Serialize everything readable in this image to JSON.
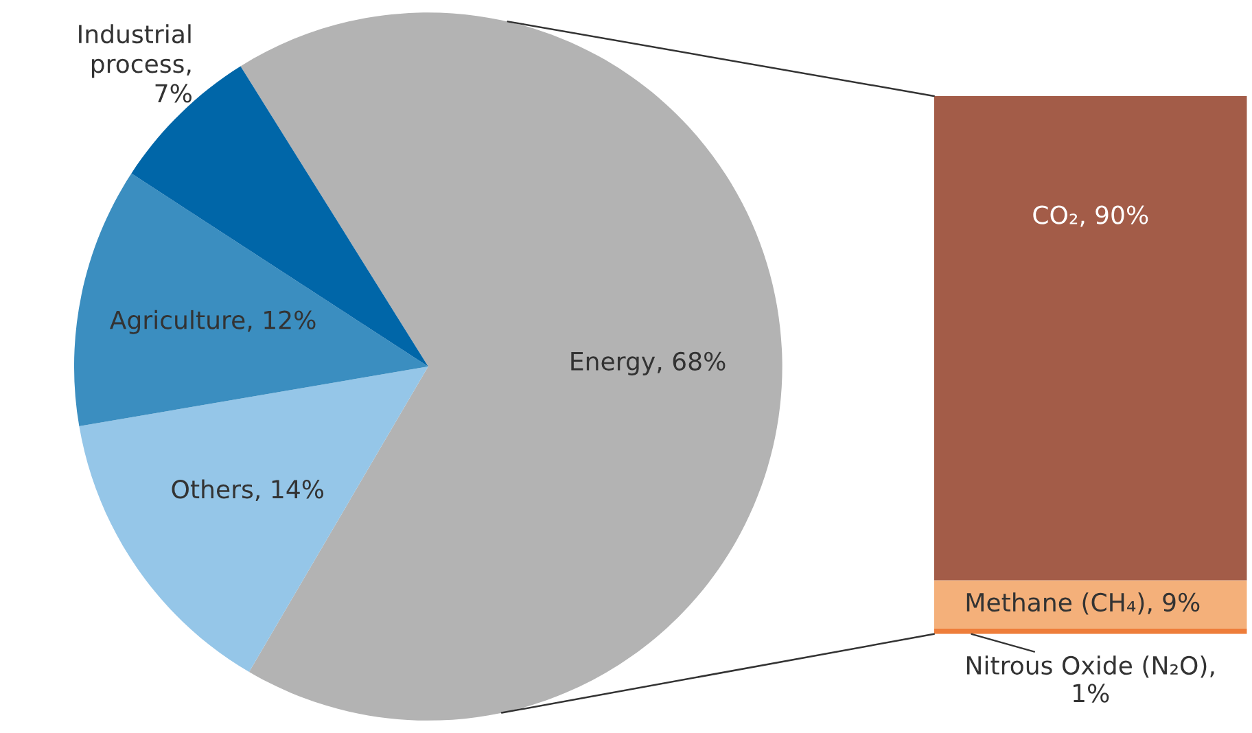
{
  "chart_data": [
    {
      "type": "pie",
      "categories": [
        "Energy",
        "Others",
        "Agriculture",
        "Industrial\nprocess"
      ],
      "values": [
        68,
        14,
        12,
        7
      ],
      "colors": [
        "#b3b3b3",
        "#95c6e8",
        "#3b8ec0",
        "#0066a8"
      ],
      "value_labels": [
        ", 68%",
        ", 14%",
        ", 12%",
        ",\n7%"
      ]
    },
    {
      "type": "bar",
      "stacked": true,
      "categories": [
        null
      ],
      "series": [
        {
          "name": "Nitrous Oxide (N₂O),",
          "color": "#ee7d3a",
          "values": [
            1
          ],
          "value_labels": [
            "1%"
          ]
        },
        {
          "name": "Methane (CH₄),",
          "color": "#f4b07a",
          "values": [
            9
          ],
          "value_labels": [
            "9%"
          ]
        },
        {
          "name": "CO₂,",
          "color": "#a35c48",
          "values": [
            90
          ],
          "value_labels": [
            "90%"
          ]
        }
      ]
    }
  ]
}
